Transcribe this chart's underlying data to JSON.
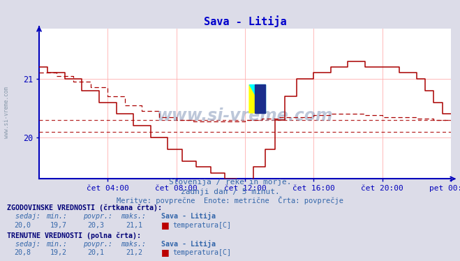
{
  "title": "Sava - Litija",
  "subtitle1": "Slovenija / reke in morje.",
  "subtitle2": "zadnji dan / 5 minut.",
  "subtitle3": "Meritve: povprečne  Enote: metrične  Črta: povprečje",
  "xlabel_ticks": [
    "čet 04:00",
    "čet 08:00",
    "čet 12:00",
    "čet 16:00",
    "čet 20:00",
    "pet 00:00"
  ],
  "ylim": [
    19.3,
    21.85
  ],
  "xlim": [
    0,
    288
  ],
  "background_color": "#dcdce8",
  "plot_bg_color": "#ffffff",
  "grid_color": "#ffb0b0",
  "line_color": "#aa0000",
  "axis_color": "#0000bb",
  "title_color": "#0000cc",
  "text_color": "#3366aa",
  "bold_text_color": "#000077",
  "hist_sedaj": "20,0",
  "hist_min": "19,7",
  "hist_povpr": "20,3",
  "hist_maks": "21,1",
  "curr_sedaj": "20,8",
  "curr_min": "19,2",
  "curr_povpr": "20,1",
  "curr_maks": "21,2",
  "hist_avg": 20.3,
  "curr_avg": 20.1,
  "tick_positions": [
    48,
    96,
    144,
    192,
    240,
    288
  ],
  "ytick_positions": [
    20.0,
    21.0
  ],
  "ytick_labels": [
    "20",
    "21"
  ]
}
